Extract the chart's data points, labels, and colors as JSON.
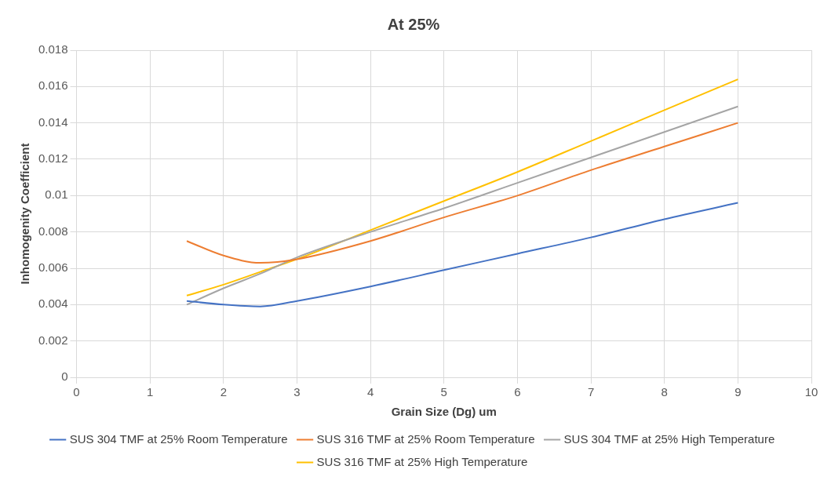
{
  "chart_data": {
    "type": "line",
    "title": "At 25%",
    "xlabel": "Grain Size (Dg) um",
    "ylabel": "Inhomogenity Coefficient",
    "x": [
      1.5,
      2,
      2.5,
      3,
      4,
      5,
      6,
      7,
      8,
      9
    ],
    "series": [
      {
        "name": "SUS 304 TMF at 25% Room Temperature",
        "color": "#4472c4",
        "values": [
          0.0042,
          0.004,
          0.0039,
          0.0042,
          0.005,
          0.0059,
          0.0068,
          0.0077,
          0.0087,
          0.0096
        ]
      },
      {
        "name": "SUS 316 TMF at 25% Room Temperature",
        "color": "#ed7d31",
        "values": [
          0.0075,
          0.0067,
          0.0063,
          0.0065,
          0.0075,
          0.0088,
          0.01,
          0.0114,
          0.0127,
          0.014
        ]
      },
      {
        "name": "SUS 304 TMF at 25% High Temperature",
        "color": "#a5a5a5",
        "values": [
          0.004,
          0.0049,
          0.0057,
          0.0066,
          0.008,
          0.0093,
          0.0107,
          0.0121,
          0.0135,
          0.0149
        ]
      },
      {
        "name": "SUS 316 TMF at 25% High Temperature",
        "color": "#ffc000",
        "values": [
          0.0045,
          0.0051,
          0.0058,
          0.0065,
          0.0081,
          0.0097,
          0.0113,
          0.013,
          0.0147,
          0.0164
        ]
      }
    ],
    "xlim": [
      0,
      10
    ],
    "xticks": [
      0,
      1,
      2,
      3,
      4,
      5,
      6,
      7,
      8,
      9,
      10
    ],
    "ylim": [
      0,
      0.018
    ],
    "yticks": [
      0,
      0.002,
      0.004,
      0.006,
      0.008,
      0.01,
      0.012,
      0.014,
      0.016,
      0.018
    ],
    "grid": true,
    "legend": "bottom",
    "marker": "none",
    "line_style": "solid"
  }
}
